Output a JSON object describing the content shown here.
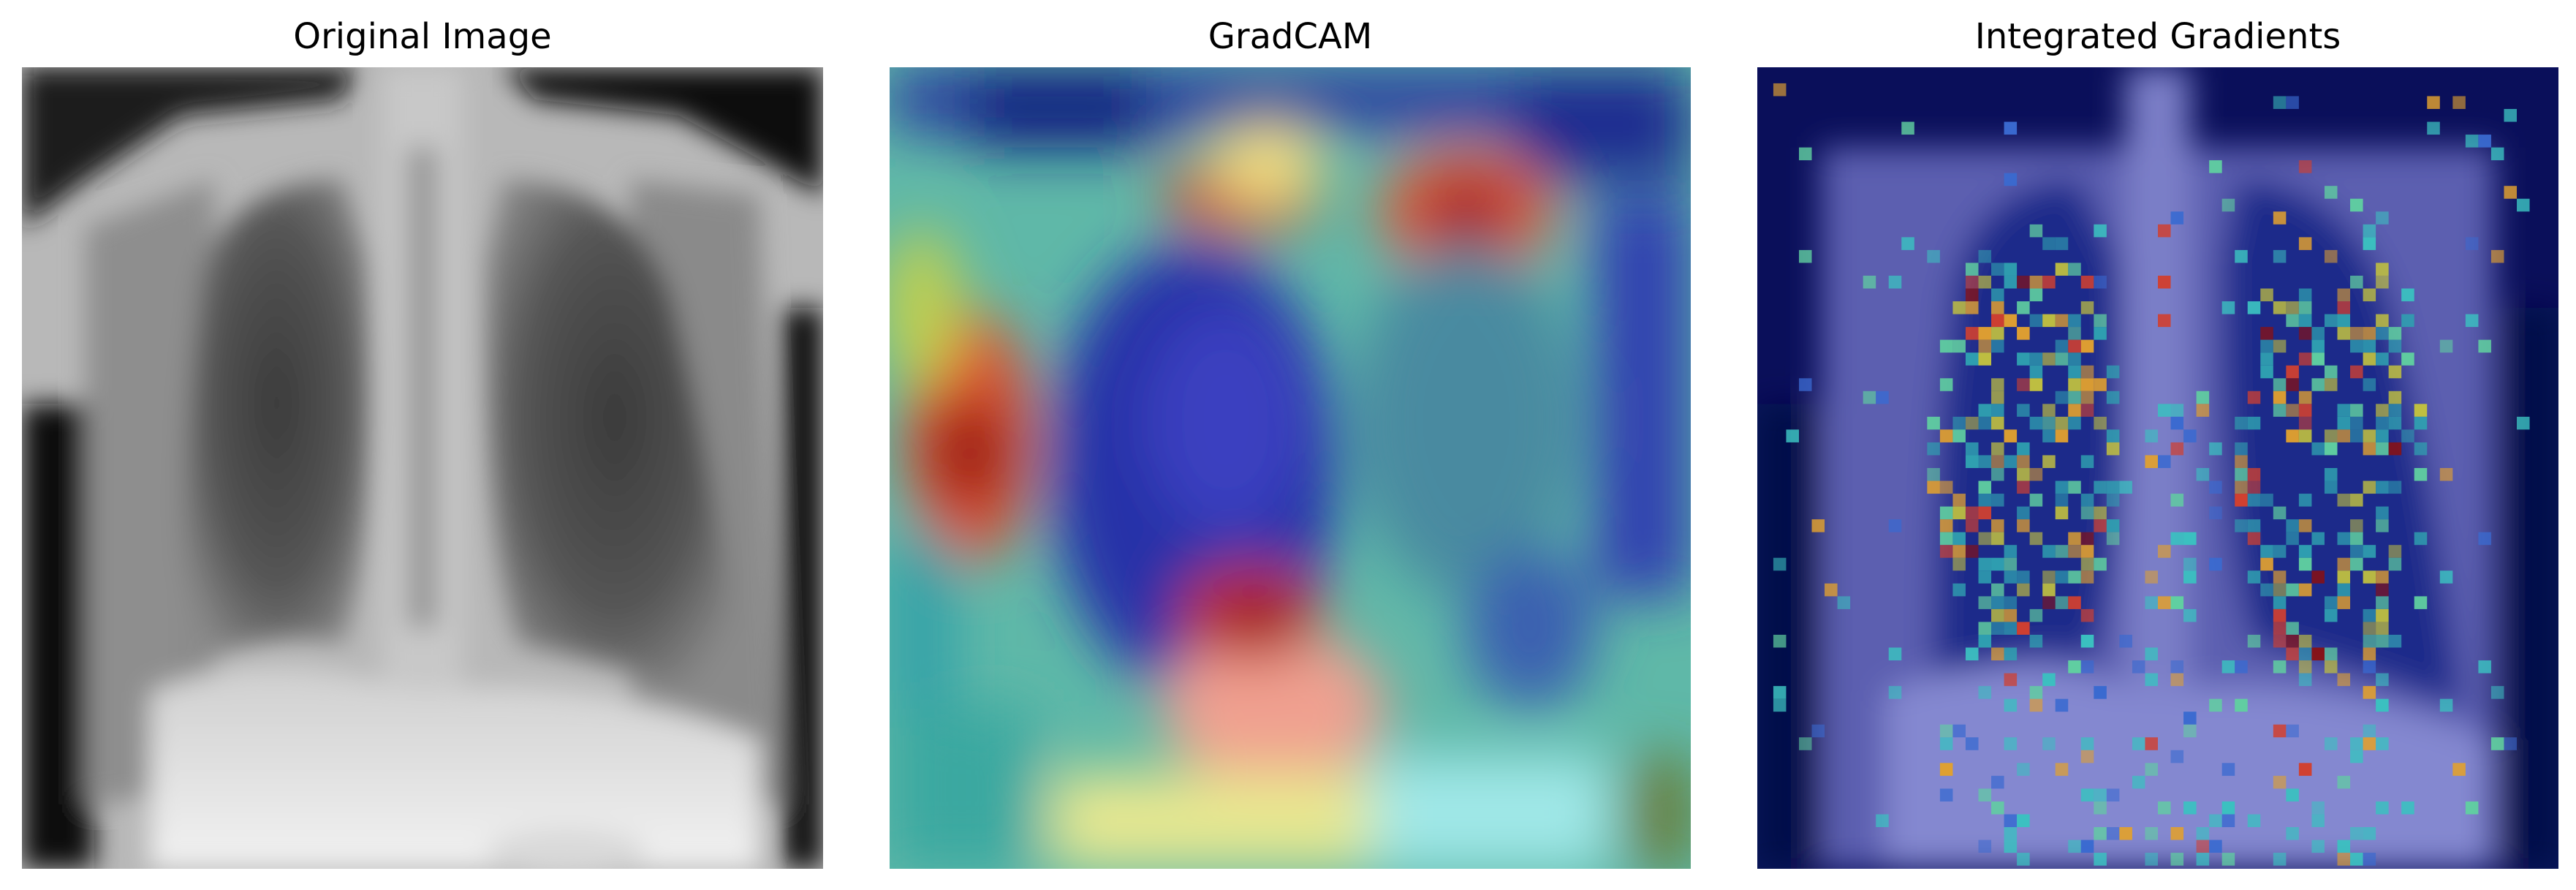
{
  "panels": [
    {
      "title": "Original Image"
    },
    {
      "title": "GradCAM"
    },
    {
      "title": "Integrated Gradients"
    }
  ],
  "colors": {
    "background": "#ffffff",
    "title_text": "#000000",
    "heat_low": "#00008f",
    "heat_mid": "#40e0d0",
    "heat_high": "#8b0000"
  }
}
